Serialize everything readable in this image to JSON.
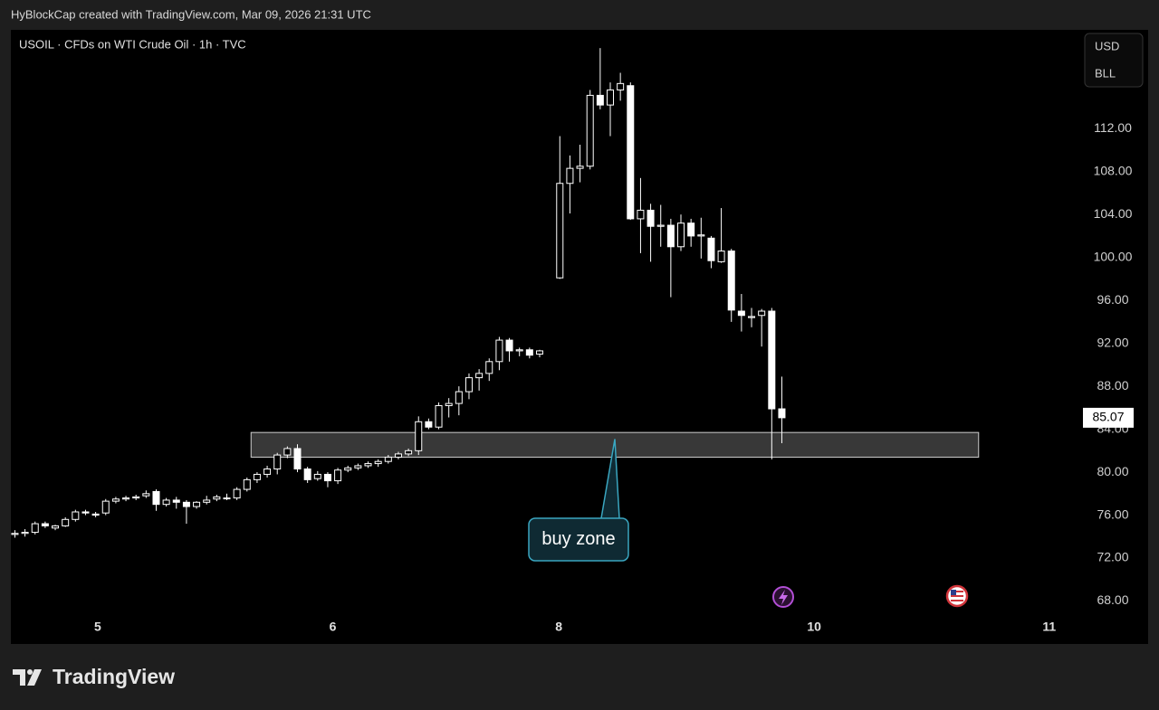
{
  "chart_data": {
    "type": "candlestick",
    "header": "HyBlockCap created with TradingView.com, Mar 09, 2026 21:31 UTC",
    "title": "USOIL · CFDs on WTI Crude Oil · 1h · TVC",
    "currency_options": [
      "USD",
      "BLL"
    ],
    "brand": "TradingView",
    "x": [
      0,
      1,
      2,
      3,
      4,
      5,
      6,
      7,
      8,
      9,
      10,
      11,
      12,
      13,
      14,
      15,
      16,
      17,
      18,
      19,
      20,
      21,
      22,
      23,
      24,
      25,
      26,
      27,
      28,
      29,
      30,
      31,
      32,
      33,
      34,
      35,
      36,
      37,
      38,
      39,
      40,
      41,
      42,
      43,
      44,
      45,
      46,
      47,
      48,
      49,
      50,
      51,
      52,
      54,
      55,
      56,
      57,
      58,
      59,
      60,
      61,
      62,
      63,
      64,
      65,
      66,
      67,
      68,
      69,
      70,
      71,
      72,
      73,
      74,
      75,
      76
    ],
    "open": [
      74.2,
      74.3,
      74.4,
      75.2,
      74.8,
      75.0,
      75.6,
      76.3,
      76.1,
      76.2,
      77.3,
      77.5,
      77.6,
      77.8,
      78.2,
      77.0,
      77.4,
      77.2,
      76.8,
      77.2,
      77.5,
      77.6,
      77.6,
      78.4,
      79.3,
      79.8,
      80.3,
      81.6,
      82.2,
      80.3,
      79.4,
      79.8,
      79.2,
      80.2,
      80.4,
      80.6,
      80.8,
      81.0,
      81.4,
      81.7,
      82.0,
      84.7,
      84.2,
      86.2,
      86.4,
      87.5,
      88.8,
      89.2,
      90.3,
      92.3,
      91.3,
      91.4,
      91.0,
      98.1,
      106.9,
      108.3,
      108.5,
      115.1,
      114.2,
      115.6,
      116.0,
      103.6,
      104.4,
      102.9,
      103.0,
      101.0,
      103.2,
      102.0,
      101.8,
      99.6,
      100.6,
      95.0,
      94.4,
      94.6,
      95.0,
      85.9
    ],
    "high": [
      74.6,
      74.7,
      75.4,
      75.4,
      75.1,
      75.8,
      76.5,
      76.5,
      76.3,
      77.5,
      77.7,
      77.8,
      77.9,
      78.3,
      78.4,
      77.6,
      77.7,
      77.4,
      77.3,
      77.8,
      77.9,
      78.0,
      78.6,
      79.5,
      80.0,
      80.6,
      81.8,
      82.4,
      82.6,
      80.5,
      80.1,
      80.0,
      80.4,
      80.6,
      80.8,
      81.0,
      81.2,
      81.6,
      81.9,
      82.2,
      85.2,
      85.0,
      86.5,
      86.9,
      88.0,
      89.2,
      89.6,
      90.6,
      92.6,
      92.5,
      91.6,
      91.6,
      91.4,
      111.3,
      109.5,
      110.5,
      115.6,
      119.5,
      116.3,
      117.2,
      116.3,
      107.4,
      105.0,
      104.9,
      103.6,
      104.0,
      103.6,
      103.7,
      102.0,
      104.6,
      100.8,
      96.6,
      95.3,
      95.2,
      95.3,
      88.9
    ],
    "low": [
      73.9,
      74.0,
      74.2,
      74.8,
      74.6,
      74.9,
      75.4,
      76.0,
      75.8,
      76.0,
      77.1,
      77.3,
      77.4,
      77.6,
      76.4,
      76.8,
      76.6,
      75.2,
      76.6,
      77.0,
      77.3,
      77.4,
      77.4,
      78.2,
      79.0,
      79.5,
      79.8,
      81.3,
      80.0,
      79.0,
      79.2,
      78.6,
      78.9,
      80.0,
      80.2,
      80.4,
      80.5,
      80.8,
      81.2,
      81.5,
      81.6,
      84.0,
      84.0,
      85.1,
      85.3,
      86.8,
      87.6,
      88.5,
      89.5,
      90.3,
      90.8,
      90.6,
      90.7,
      98.0,
      104.1,
      107.0,
      108.2,
      113.8,
      111.3,
      114.6,
      103.5,
      100.4,
      99.6,
      101.0,
      96.3,
      100.6,
      101.0,
      99.9,
      99.0,
      99.5,
      94.0,
      93.1,
      93.5,
      91.7,
      81.2,
      82.7
    ],
    "close": [
      74.3,
      74.4,
      75.2,
      75.0,
      75.0,
      75.6,
      76.3,
      76.2,
      76.0,
      77.3,
      77.5,
      77.6,
      77.7,
      78.0,
      77.0,
      77.4,
      77.2,
      76.8,
      77.2,
      77.4,
      77.7,
      77.6,
      78.4,
      79.3,
      79.8,
      80.3,
      81.6,
      82.2,
      80.3,
      79.3,
      79.8,
      79.2,
      80.2,
      80.4,
      80.6,
      80.8,
      81.0,
      81.4,
      81.7,
      82.0,
      84.7,
      84.2,
      86.2,
      86.4,
      87.5,
      88.8,
      89.2,
      90.3,
      92.3,
      91.3,
      91.4,
      90.9,
      91.3,
      106.9,
      108.3,
      108.5,
      115.1,
      114.2,
      115.6,
      116.2,
      103.6,
      104.4,
      102.9,
      103.0,
      101.0,
      103.2,
      102.0,
      102.1,
      99.7,
      100.6,
      95.1,
      94.6,
      94.5,
      95.0,
      85.9,
      85.07
    ],
    "up_color": "#000000",
    "down_color": "#ffffff",
    "wick_color": "#ffffff",
    "last_price": 85.07,
    "xlim": [
      -0.4,
      105.3
    ],
    "xticks": [
      {
        "value": 8.2,
        "label": "5"
      },
      {
        "value": 31.5,
        "label": "6"
      },
      {
        "value": 53.9,
        "label": "8"
      },
      {
        "value": 79.2,
        "label": "10"
      },
      {
        "value": 102.5,
        "label": "11"
      }
    ],
    "ylim": [
      64.0,
      121.2
    ],
    "yticks": [
      {
        "value": 68,
        "label": "68.00"
      },
      {
        "value": 72,
        "label": "72.00"
      },
      {
        "value": 76,
        "label": "76.00"
      },
      {
        "value": 80,
        "label": "80.00"
      },
      {
        "value": 84,
        "label": "84.00"
      },
      {
        "value": 88,
        "label": "88.00"
      },
      {
        "value": 92,
        "label": "92.00"
      },
      {
        "value": 96,
        "label": "96.00"
      },
      {
        "value": 100,
        "label": "100.00"
      },
      {
        "value": 104,
        "label": "104.00"
      },
      {
        "value": 108,
        "label": "108.00"
      },
      {
        "value": 112,
        "label": "112.00"
      }
    ],
    "buy_zone": {
      "label": "buy zone",
      "x_range": [
        23.4,
        95.5
      ],
      "y_range": [
        81.4,
        83.7
      ]
    }
  }
}
